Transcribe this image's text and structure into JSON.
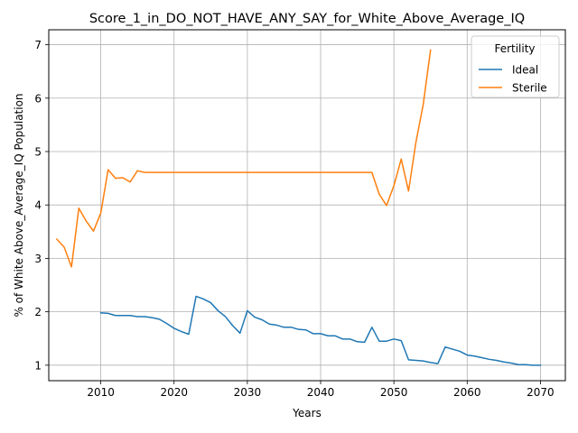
{
  "chart_data": {
    "type": "line",
    "title": "Score_1_in_DO_NOT_HAVE_ANY_SAY_for_White_Above_Average_IQ",
    "xlabel": "Years",
    "ylabel": "% of White Above_Average_IQ Population",
    "xlim": [
      2002.9,
      2073.4
    ],
    "ylim": [
      0.71,
      7.28
    ],
    "xticks": [
      2010,
      2020,
      2030,
      2040,
      2050,
      2060,
      2070
    ],
    "yticks": [
      1,
      2,
      3,
      4,
      5,
      6,
      7
    ],
    "grid": true,
    "legend": {
      "title": "Fertility",
      "placement": "top-right"
    },
    "series": [
      {
        "name": "Ideal",
        "color": "#1f77b4",
        "x": [
          2010,
          2011,
          2012,
          2013,
          2014,
          2015,
          2016,
          2017,
          2018,
          2019,
          2020,
          2021,
          2022,
          2023,
          2024,
          2025,
          2026,
          2027,
          2028,
          2029,
          2030,
          2031,
          2032,
          2033,
          2034,
          2035,
          2036,
          2037,
          2038,
          2039,
          2040,
          2041,
          2042,
          2043,
          2044,
          2045,
          2046,
          2047,
          2048,
          2049,
          2050,
          2051,
          2052,
          2053,
          2054,
          2055,
          2056,
          2057,
          2058,
          2059,
          2060,
          2061,
          2062,
          2063,
          2064,
          2065,
          2066,
          2067,
          2068,
          2069,
          2070
        ],
        "values": [
          1.98,
          1.97,
          1.93,
          1.93,
          1.93,
          1.91,
          1.91,
          1.89,
          1.86,
          1.78,
          1.69,
          1.63,
          1.58,
          2.29,
          2.24,
          2.17,
          2.02,
          1.91,
          1.74,
          1.6,
          2.02,
          1.9,
          1.85,
          1.77,
          1.75,
          1.71,
          1.71,
          1.67,
          1.66,
          1.59,
          1.59,
          1.55,
          1.55,
          1.49,
          1.49,
          1.44,
          1.43,
          1.71,
          1.45,
          1.45,
          1.49,
          1.46,
          1.1,
          1.09,
          1.08,
          1.05,
          1.03,
          1.34,
          1.3,
          1.26,
          1.19,
          1.17,
          1.14,
          1.11,
          1.09,
          1.06,
          1.04,
          1.01,
          1.01,
          1.0,
          1.0
        ]
      },
      {
        "name": "Sterile",
        "color": "#ff7f0e",
        "x": [
          2004,
          2005,
          2006,
          2007,
          2008,
          2009,
          2010,
          2011,
          2012,
          2013,
          2014,
          2015,
          2016,
          2017,
          2018,
          2019,
          2020,
          2021,
          2022,
          2023,
          2024,
          2025,
          2026,
          2027,
          2028,
          2029,
          2030,
          2031,
          2032,
          2033,
          2034,
          2035,
          2036,
          2037,
          2038,
          2039,
          2040,
          2041,
          2042,
          2043,
          2044,
          2045,
          2046,
          2047,
          2048,
          2049,
          2050,
          2051,
          2052,
          2053,
          2054,
          2055
        ],
        "values": [
          3.36,
          3.21,
          2.84,
          3.94,
          3.7,
          3.51,
          3.85,
          4.66,
          4.5,
          4.51,
          4.43,
          4.64,
          4.61,
          4.61,
          4.61,
          4.61,
          4.61,
          4.61,
          4.61,
          4.61,
          4.61,
          4.61,
          4.61,
          4.61,
          4.61,
          4.61,
          4.61,
          4.61,
          4.61,
          4.61,
          4.61,
          4.61,
          4.61,
          4.61,
          4.61,
          4.61,
          4.61,
          4.61,
          4.61,
          4.61,
          4.61,
          4.61,
          4.61,
          4.61,
          4.2,
          3.99,
          4.36,
          4.86,
          4.26,
          5.17,
          5.88,
          6.9
        ]
      }
    ]
  }
}
